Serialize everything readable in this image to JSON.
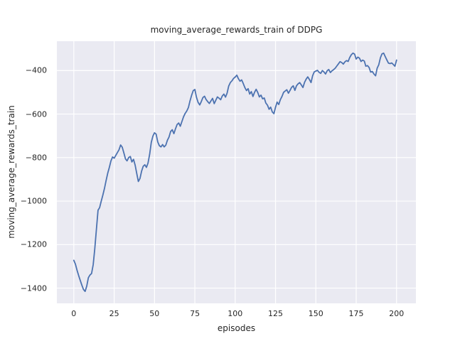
{
  "figure": {
    "background": "#ffffff"
  },
  "chart_data": {
    "type": "line",
    "title": "moving_average_rewards_train of DDPG",
    "xlabel": "episodes",
    "ylabel": "moving_average_rewards_train",
    "legend": null,
    "grid": true,
    "xlim": [
      -10.5,
      212
    ],
    "ylim": [
      -1470,
      -265
    ],
    "x_ticks": [
      0,
      25,
      50,
      75,
      100,
      125,
      150,
      175,
      200
    ],
    "x_tick_labels": [
      "0",
      "25",
      "50",
      "75",
      "100",
      "125",
      "150",
      "175",
      "200"
    ],
    "y_ticks": [
      -400,
      -600,
      -800,
      -1000,
      -1200,
      -1400
    ],
    "y_tick_labels": [
      "−400",
      "−600",
      "−800",
      "−1000",
      "−1200",
      "−1400"
    ],
    "styles": {
      "axes_background": "#eaeaf2",
      "grid_color": "#ffffff",
      "line_color": "#4c72b0",
      "text_color": "#262626",
      "line_width": 1.8,
      "grid_width": 1.2
    },
    "series": [
      {
        "name": "moving_average_rewards_train",
        "x0": 0,
        "dx": 1,
        "values": [
          -1272,
          -1290,
          -1318,
          -1342,
          -1365,
          -1387,
          -1406,
          -1415,
          -1391,
          -1352,
          -1340,
          -1333,
          -1292,
          -1220,
          -1130,
          -1042,
          -1030,
          -1000,
          -972,
          -941,
          -906,
          -872,
          -845,
          -816,
          -797,
          -803,
          -790,
          -777,
          -764,
          -742,
          -752,
          -778,
          -806,
          -815,
          -800,
          -795,
          -820,
          -808,
          -835,
          -872,
          -910,
          -896,
          -862,
          -840,
          -833,
          -845,
          -825,
          -785,
          -730,
          -702,
          -686,
          -692,
          -728,
          -745,
          -751,
          -740,
          -751,
          -743,
          -720,
          -706,
          -680,
          -672,
          -690,
          -668,
          -648,
          -641,
          -656,
          -634,
          -612,
          -597,
          -586,
          -570,
          -540,
          -514,
          -492,
          -487,
          -522,
          -546,
          -558,
          -543,
          -524,
          -518,
          -533,
          -543,
          -551,
          -539,
          -528,
          -552,
          -536,
          -521,
          -527,
          -534,
          -517,
          -508,
          -522,
          -504,
          -471,
          -455,
          -447,
          -436,
          -430,
          -421,
          -437,
          -449,
          -443,
          -459,
          -478,
          -492,
          -483,
          -508,
          -497,
          -519,
          -500,
          -486,
          -501,
          -521,
          -513,
          -530,
          -526,
          -549,
          -559,
          -578,
          -568,
          -590,
          -598,
          -569,
          -545,
          -556,
          -534,
          -519,
          -500,
          -494,
          -488,
          -504,
          -491,
          -477,
          -470,
          -491,
          -470,
          -461,
          -455,
          -466,
          -478,
          -454,
          -439,
          -429,
          -441,
          -455,
          -424,
          -406,
          -402,
          -399,
          -408,
          -413,
          -400,
          -406,
          -416,
          -401,
          -395,
          -409,
          -401,
          -396,
          -389,
          -379,
          -369,
          -359,
          -363,
          -370,
          -360,
          -354,
          -358,
          -340,
          -327,
          -320,
          -324,
          -347,
          -338,
          -343,
          -358,
          -352,
          -356,
          -380,
          -377,
          -386,
          -407,
          -404,
          -416,
          -424,
          -389,
          -373,
          -341,
          -323,
          -320,
          -336,
          -351,
          -366,
          -368,
          -365,
          -372,
          -380,
          -352
        ]
      }
    ]
  }
}
